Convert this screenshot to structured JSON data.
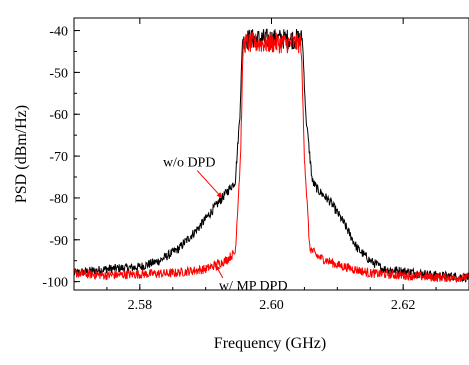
{
  "chart_data": {
    "type": "line",
    "title": "",
    "xlabel": "Frequency (GHz)",
    "ylabel": "PSD (dBm/Hz)",
    "xlim": [
      2.57,
      2.63
    ],
    "ylim": [
      -102,
      -37
    ],
    "x_ticks": [
      2.58,
      2.6,
      2.62
    ],
    "x_tick_labels": [
      "2.58",
      "2.60",
      "2.62"
    ],
    "y_ticks": [
      -40,
      -50,
      -60,
      -70,
      -80,
      -90,
      -100
    ],
    "y_tick_labels": [
      "-40",
      "-50",
      "-60",
      "-70",
      "-80",
      "-90",
      "-100"
    ],
    "grid": false,
    "legend": "none",
    "series": [
      {
        "color": "#000000",
        "x": [
          2.57,
          2.575,
          2.58,
          2.583,
          2.586,
          2.589,
          2.591,
          2.593,
          2.5945,
          2.5952,
          2.5956,
          2.6,
          2.6047,
          2.6052,
          2.6062,
          2.607,
          2.609,
          2.611,
          2.613,
          2.615,
          2.617,
          2.62,
          2.625,
          2.63
        ],
        "values": [
          -98,
          -97,
          -96.5,
          -95,
          -92,
          -87,
          -83,
          -79,
          -76,
          -60,
          -42,
          -42,
          -42,
          -60,
          -76,
          -78,
          -81,
          -86,
          -92,
          -95,
          -97,
          -97.5,
          -98.5,
          -99
        ]
      },
      {
        "color": "#ff0000",
        "x": [
          2.57,
          2.575,
          2.58,
          2.585,
          2.59,
          2.593,
          2.5945,
          2.5953,
          2.5957,
          2.6,
          2.6045,
          2.605,
          2.6058,
          2.607,
          2.61,
          2.615,
          2.62,
          2.625,
          2.63
        ],
        "values": [
          -98,
          -98.5,
          -98.2,
          -98,
          -97,
          -95,
          -93,
          -70,
          -43,
          -43,
          -43,
          -70,
          -92,
          -94,
          -96,
          -98,
          -98.5,
          -99,
          -99
        ]
      }
    ],
    "annotations": [
      {
        "text": "w/o DPD",
        "x": 2.5875,
        "y": -72.5,
        "arrow_to": [
          2.5925,
          -80
        ]
      },
      {
        "text": "w/ MP DPD",
        "x": 2.592,
        "y": -102,
        "arrow_to": [
          2.5915,
          -96
        ]
      }
    ]
  }
}
